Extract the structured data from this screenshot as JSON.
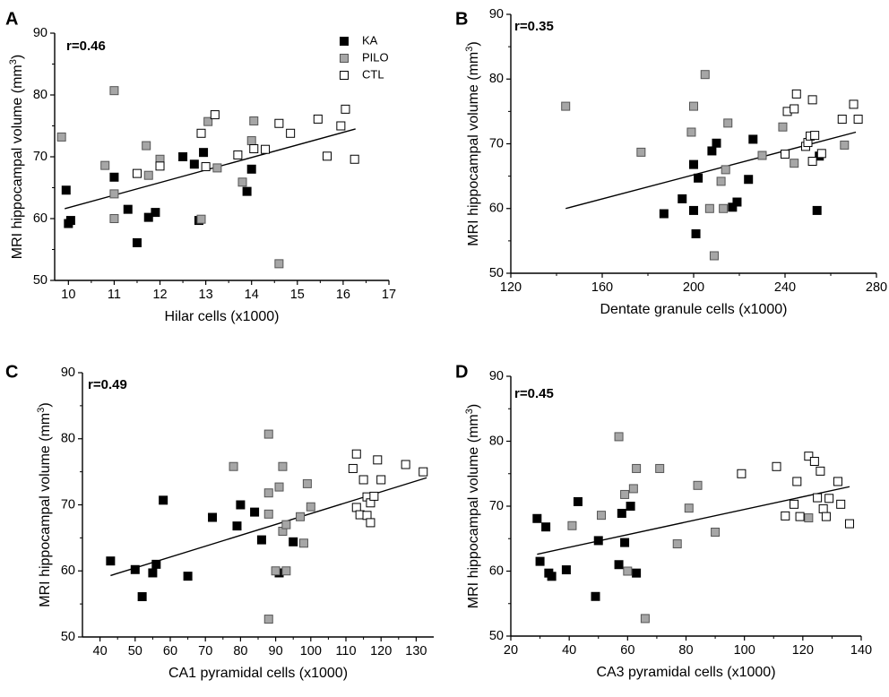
{
  "colors": {
    "KA": "#000000",
    "PILO": "#a6a6a6",
    "CTL": "#ffffff",
    "axis": "#000000"
  },
  "legend": [
    {
      "name": "KA",
      "label": "KA"
    },
    {
      "name": "PILO",
      "label": "PILO"
    },
    {
      "name": "CTL",
      "label": "CTL"
    }
  ],
  "chart_data": [
    {
      "type": "scatter",
      "panel": "A",
      "r_label": "r=0.46",
      "xlabel": "Hilar cells (x1000)",
      "ylabel": "MRI hippocampal volume (mm",
      "ylabel_sup": "3",
      "ylabel_close": ")",
      "xlim": [
        9.7,
        17
      ],
      "ylim": [
        50,
        90
      ],
      "xticks": [
        10,
        11,
        12,
        13,
        14,
        15,
        16,
        17
      ],
      "yticks": [
        50,
        60,
        70,
        80,
        90
      ],
      "has_legend": true,
      "fit": {
        "x": [
          9.92,
          16.27
        ],
        "y": [
          61.6,
          74.5
        ]
      },
      "series": [
        {
          "name": "KA",
          "points": [
            [
              9.95,
              64.6
            ],
            [
              10.0,
              59.2
            ],
            [
              10.05,
              59.7
            ],
            [
              11.0,
              66.7
            ],
            [
              11.3,
              61.5
            ],
            [
              11.5,
              56.1
            ],
            [
              11.75,
              60.2
            ],
            [
              11.9,
              61.0
            ],
            [
              12.5,
              70.0
            ],
            [
              12.75,
              68.8
            ],
            [
              12.85,
              59.7
            ],
            [
              12.95,
              70.7
            ],
            [
              13.9,
              64.4
            ],
            [
              14.0,
              68.0
            ]
          ]
        },
        {
          "name": "PILO",
          "points": [
            [
              9.85,
              73.2
            ],
            [
              10.8,
              68.6
            ],
            [
              11.0,
              80.7
            ],
            [
              11.0,
              60.0
            ],
            [
              11.0,
              64.0
            ],
            [
              11.7,
              71.8
            ],
            [
              11.75,
              67.0
            ],
            [
              12.0,
              69.6
            ],
            [
              12.9,
              59.9
            ],
            [
              13.05,
              75.7
            ],
            [
              13.25,
              68.2
            ],
            [
              13.8,
              65.9
            ],
            [
              14.0,
              72.6
            ],
            [
              14.05,
              75.8
            ],
            [
              14.6,
              52.7
            ]
          ]
        },
        {
          "name": "CTL",
          "points": [
            [
              11.5,
              67.3
            ],
            [
              12.0,
              68.5
            ],
            [
              12.9,
              73.8
            ],
            [
              13.0,
              68.4
            ],
            [
              13.2,
              76.8
            ],
            [
              13.7,
              70.3
            ],
            [
              14.05,
              71.3
            ],
            [
              14.3,
              71.2
            ],
            [
              14.6,
              75.4
            ],
            [
              14.85,
              73.8
            ],
            [
              15.45,
              76.1
            ],
            [
              15.65,
              70.1
            ],
            [
              15.95,
              75.0
            ],
            [
              16.05,
              77.7
            ],
            [
              16.25,
              69.6
            ]
          ]
        }
      ]
    },
    {
      "type": "scatter",
      "panel": "B",
      "r_label": "r=0.35",
      "xlabel": "Dentate granule cells (x1000)",
      "ylabel": "MRI hippocampal volume (mm",
      "ylabel_sup": "3",
      "ylabel_close": ")",
      "xlim": [
        120,
        280
      ],
      "ylim": [
        50,
        90
      ],
      "xticks": [
        120,
        160,
        200,
        240,
        280
      ],
      "yticks": [
        50,
        60,
        70,
        80,
        90
      ],
      "has_legend": false,
      "fit": {
        "x": [
          144,
          271
        ],
        "y": [
          60.0,
          71.8
        ]
      },
      "series": [
        {
          "name": "KA",
          "points": [
            [
              187,
              59.2
            ],
            [
              195,
              61.5
            ],
            [
              200,
              66.8
            ],
            [
              200,
              59.7
            ],
            [
              201,
              56.1
            ],
            [
              202,
              64.7
            ],
            [
              208,
              68.9
            ],
            [
              210,
              70.1
            ],
            [
              217,
              60.2
            ],
            [
              219,
              61.0
            ],
            [
              224,
              64.5
            ],
            [
              226,
              70.7
            ],
            [
              254,
              59.7
            ],
            [
              255,
              68.1
            ]
          ]
        },
        {
          "name": "PILO",
          "points": [
            [
              144,
              75.8
            ],
            [
              177,
              68.7
            ],
            [
              199,
              71.8
            ],
            [
              200,
              75.8
            ],
            [
              205,
              80.7
            ],
            [
              207,
              60.0
            ],
            [
              209,
              52.7
            ],
            [
              212,
              64.2
            ],
            [
              213,
              60.0
            ],
            [
              214,
              66.0
            ],
            [
              215,
              73.2
            ],
            [
              230,
              68.2
            ],
            [
              239,
              72.6
            ],
            [
              244,
              67.0
            ],
            [
              266,
              69.8
            ]
          ]
        },
        {
          "name": "CTL",
          "points": [
            [
              240,
              68.4
            ],
            [
              241,
              75.0
            ],
            [
              244,
              75.4
            ],
            [
              245,
              77.7
            ],
            [
              249,
              69.6
            ],
            [
              250,
              70.2
            ],
            [
              251,
              71.2
            ],
            [
              252,
              67.3
            ],
            [
              252,
              76.8
            ],
            [
              253,
              71.3
            ],
            [
              256,
              68.5
            ],
            [
              265,
              73.8
            ],
            [
              270,
              76.1
            ],
            [
              272,
              73.8
            ]
          ]
        }
      ]
    },
    {
      "type": "scatter",
      "panel": "C",
      "r_label": "r=0.49",
      "xlabel": "CA1 pyramidal cells (x1000)",
      "ylabel": "MRI hippocampal volume (mm",
      "ylabel_sup": "3",
      "ylabel_close": ")",
      "xlim": [
        35,
        135
      ],
      "ylim": [
        50,
        90
      ],
      "xticks": [
        40,
        50,
        60,
        70,
        80,
        90,
        100,
        110,
        120,
        130
      ],
      "yticks": [
        50,
        60,
        70,
        80,
        90
      ],
      "has_legend": false,
      "fit": {
        "x": [
          43,
          133
        ],
        "y": [
          59.3,
          74.1
        ]
      },
      "series": [
        {
          "name": "KA",
          "points": [
            [
              43,
              61.5
            ],
            [
              50,
              60.2
            ],
            [
              52,
              56.1
            ],
            [
              55,
              59.7
            ],
            [
              56,
              61.0
            ],
            [
              58,
              70.7
            ],
            [
              65,
              59.2
            ],
            [
              72,
              68.1
            ],
            [
              79,
              66.8
            ],
            [
              80,
              70.0
            ],
            [
              84,
              68.9
            ],
            [
              86,
              64.7
            ],
            [
              91,
              59.7
            ],
            [
              95,
              64.4
            ]
          ]
        },
        {
          "name": "PILO",
          "points": [
            [
              78,
              75.8
            ],
            [
              88,
              80.7
            ],
            [
              88,
              71.8
            ],
            [
              88,
              68.6
            ],
            [
              88,
              52.7
            ],
            [
              90,
              60.0
            ],
            [
              91,
              72.7
            ],
            [
              92,
              75.8
            ],
            [
              92,
              66.0
            ],
            [
              93,
              67.0
            ],
            [
              93,
              60.0
            ],
            [
              97,
              68.2
            ],
            [
              98,
              64.2
            ],
            [
              99,
              73.2
            ],
            [
              100,
              69.7
            ]
          ]
        },
        {
          "name": "CTL",
          "points": [
            [
              112,
              75.5
            ],
            [
              113,
              77.7
            ],
            [
              113,
              69.6
            ],
            [
              114,
              68.5
            ],
            [
              115,
              73.8
            ],
            [
              116,
              71.2
            ],
            [
              116,
              68.4
            ],
            [
              117,
              67.3
            ],
            [
              117,
              70.3
            ],
            [
              118,
              71.3
            ],
            [
              119,
              76.8
            ],
            [
              120,
              73.8
            ],
            [
              127,
              76.1
            ],
            [
              132,
              75.0
            ]
          ]
        }
      ]
    },
    {
      "type": "scatter",
      "panel": "D",
      "r_label": "r=0.45",
      "xlabel": "CA3 pyramidal cells (x1000)",
      "ylabel": "MRI hippocampal volume (mm",
      "ylabel_sup": "3",
      "ylabel_close": ")",
      "xlim": [
        20,
        140
      ],
      "ylim": [
        50,
        90
      ],
      "xticks": [
        20,
        40,
        60,
        80,
        100,
        120,
        140
      ],
      "yticks": [
        50,
        60,
        70,
        80,
        90
      ],
      "has_legend": false,
      "fit": {
        "x": [
          29,
          136
        ],
        "y": [
          62.6,
          73.0
        ]
      },
      "series": [
        {
          "name": "KA",
          "points": [
            [
              29,
              68.1
            ],
            [
              30,
              61.5
            ],
            [
              32,
              66.8
            ],
            [
              33,
              59.7
            ],
            [
              34,
              59.2
            ],
            [
              39,
              60.2
            ],
            [
              43,
              70.7
            ],
            [
              49,
              56.1
            ],
            [
              50,
              64.7
            ],
            [
              57,
              61.0
            ],
            [
              58,
              68.9
            ],
            [
              59,
              64.4
            ],
            [
              61,
              70.0
            ],
            [
              63,
              59.7
            ]
          ]
        },
        {
          "name": "PILO",
          "points": [
            [
              41,
              67.0
            ],
            [
              51,
              68.6
            ],
            [
              57,
              80.7
            ],
            [
              59,
              71.8
            ],
            [
              60,
              60.0
            ],
            [
              62,
              72.7
            ],
            [
              63,
              75.8
            ],
            [
              66,
              52.7
            ],
            [
              71,
              75.8
            ],
            [
              77,
              64.2
            ],
            [
              81,
              69.7
            ],
            [
              84,
              73.2
            ],
            [
              90,
              66.0
            ],
            [
              122,
              68.2
            ]
          ]
        },
        {
          "name": "CTL",
          "points": [
            [
              99,
              75.0
            ],
            [
              111,
              76.1
            ],
            [
              114,
              68.5
            ],
            [
              117,
              70.3
            ],
            [
              118,
              73.8
            ],
            [
              119,
              68.4
            ],
            [
              122,
              77.7
            ],
            [
              124,
              76.9
            ],
            [
              125,
              71.3
            ],
            [
              126,
              75.4
            ],
            [
              127,
              69.6
            ],
            [
              128,
              68.4
            ],
            [
              129,
              71.2
            ],
            [
              132,
              73.8
            ],
            [
              133,
              70.3
            ],
            [
              136,
              67.3
            ]
          ]
        }
      ]
    }
  ]
}
